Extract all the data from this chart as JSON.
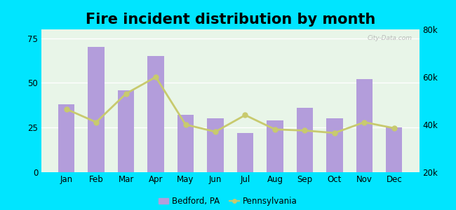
{
  "title": "Fire incident distribution by month",
  "months": [
    "Jan",
    "Feb",
    "Mar",
    "Apr",
    "May",
    "Jun",
    "Jul",
    "Aug",
    "Sep",
    "Oct",
    "Nov",
    "Dec"
  ],
  "bedford_values": [
    38,
    70,
    46,
    65,
    32,
    30,
    22,
    29,
    36,
    30,
    52,
    25
  ],
  "pennsylvania_values": [
    46500,
    41000,
    53000,
    60000,
    40000,
    37000,
    44000,
    38000,
    37500,
    36500,
    41000,
    38500
  ],
  "bar_color": "#b39ddb",
  "line_color": "#c8ca6e",
  "line_marker": "o",
  "background_color": "#e8f5e8",
  "outer_background": "#00e5ff",
  "ylim_left": [
    0,
    80
  ],
  "ylim_right": [
    20000,
    80000
  ],
  "yticks_left": [
    0,
    25,
    50,
    75
  ],
  "yticks_right": [
    20000,
    40000,
    60000,
    80000
  ],
  "ytick_labels_right": [
    "20k",
    "40k",
    "60k",
    "80k"
  ],
  "legend_bedford": "Bedford, PA",
  "legend_pa": "Pennsylvania",
  "title_fontsize": 15,
  "watermark": "City-Data.com"
}
